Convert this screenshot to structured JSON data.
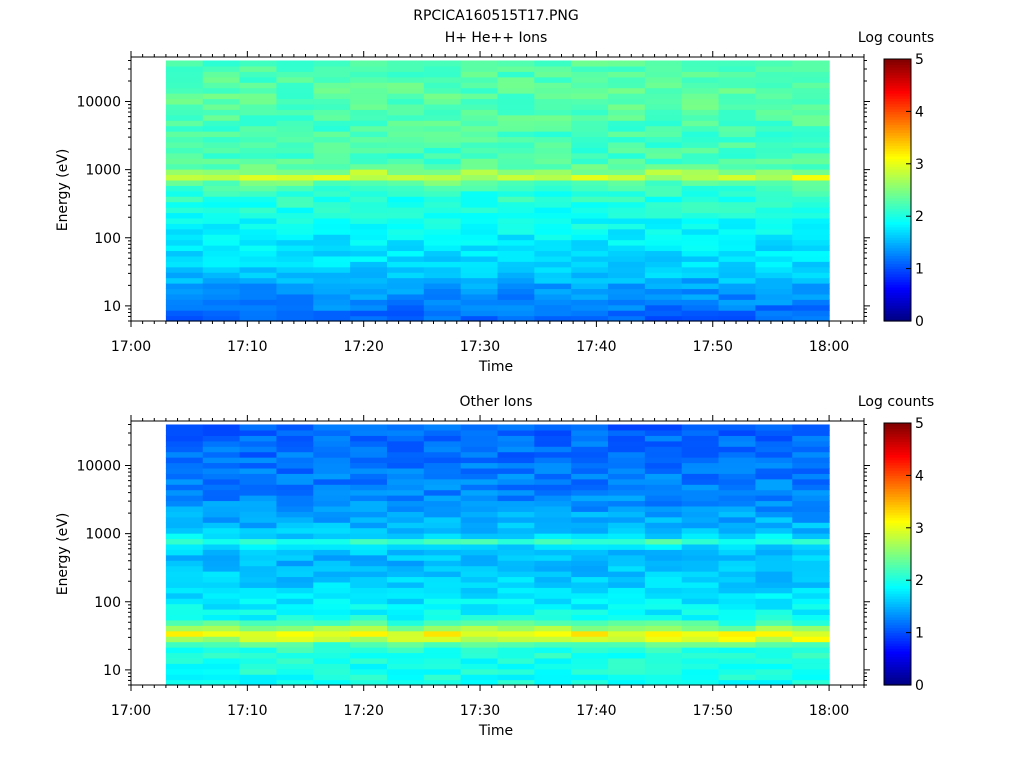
{
  "figure_title": "RPCICA160515T17.PNG",
  "panels": [
    {
      "title": "H+ He++ Ions",
      "ylabel": "Energy (eV)",
      "xlabel": "Time",
      "colorbar_label": "Log counts",
      "xticks": [
        "17:00",
        "17:10",
        "17:20",
        "17:30",
        "17:40",
        "17:50",
        "18:00"
      ],
      "yticks": [
        "10",
        "100",
        "1000",
        "10000"
      ],
      "cbar_ticks": [
        "0",
        "1",
        "2",
        "3",
        "4",
        "5"
      ]
    },
    {
      "title": "Other Ions",
      "ylabel": "Energy (eV)",
      "xlabel": "Time",
      "colorbar_label": "Log counts",
      "xticks": [
        "17:00",
        "17:10",
        "17:20",
        "17:30",
        "17:40",
        "17:50",
        "18:00"
      ],
      "yticks": [
        "10",
        "100",
        "1000",
        "10000"
      ],
      "cbar_ticks": [
        "0",
        "1",
        "2",
        "3",
        "4",
        "5"
      ]
    }
  ],
  "chart_data": [
    {
      "type": "heatmap",
      "title": "H+ He++ Ions",
      "xlabel": "Time",
      "ylabel": "Energy (eV)",
      "colorbar_label": "Log counts",
      "y_scale": "log",
      "x_range": [
        "17:00",
        "18:03"
      ],
      "y_range": [
        6,
        45000
      ],
      "data_x_range": [
        "17:03",
        "18:00"
      ],
      "data_y_range": [
        6,
        40000
      ],
      "color_range": [
        0,
        5
      ],
      "colormap": "jet",
      "time_bins": 18,
      "energy_profile": [
        {
          "energy": 6,
          "log_counts": 1.1
        },
        {
          "energy": 12,
          "log_counts": 1.3
        },
        {
          "energy": 20,
          "log_counts": 1.4
        },
        {
          "energy": 28,
          "log_counts": 1.6
        },
        {
          "energy": 45,
          "log_counts": 1.7
        },
        {
          "energy": 100,
          "log_counts": 1.8
        },
        {
          "energy": 250,
          "log_counts": 2.0
        },
        {
          "energy": 500,
          "log_counts": 2.1
        },
        {
          "energy": 700,
          "log_counts": 2.4
        },
        {
          "energy": 820,
          "log_counts": 3.0
        },
        {
          "energy": 1000,
          "log_counts": 2.4
        },
        {
          "energy": 1500,
          "log_counts": 2.2
        },
        {
          "energy": 3000,
          "log_counts": 2.2
        },
        {
          "energy": 10000,
          "log_counts": 2.3
        },
        {
          "energy": 40000,
          "log_counts": 2.25
        }
      ]
    },
    {
      "type": "heatmap",
      "title": "Other Ions",
      "xlabel": "Time",
      "ylabel": "Energy (eV)",
      "colorbar_label": "Log counts",
      "y_scale": "log",
      "x_range": [
        "17:00",
        "18:03"
      ],
      "y_range": [
        6,
        45000
      ],
      "data_x_range": [
        "17:03",
        "18:00"
      ],
      "data_y_range": [
        6,
        40000
      ],
      "color_range": [
        0,
        5
      ],
      "colormap": "jet",
      "time_bins": 18,
      "energy_profile": [
        {
          "energy": 6,
          "log_counts": 1.95
        },
        {
          "energy": 15,
          "log_counts": 2.0
        },
        {
          "energy": 22,
          "log_counts": 2.1
        },
        {
          "energy": 27,
          "log_counts": 2.6
        },
        {
          "energy": 30,
          "log_counts": 3.1
        },
        {
          "energy": 35,
          "log_counts": 3.1
        },
        {
          "energy": 42,
          "log_counts": 2.5
        },
        {
          "energy": 60,
          "log_counts": 1.9
        },
        {
          "energy": 150,
          "log_counts": 1.7
        },
        {
          "energy": 400,
          "log_counts": 1.5
        },
        {
          "energy": 650,
          "log_counts": 1.7
        },
        {
          "energy": 780,
          "log_counts": 2.2
        },
        {
          "energy": 950,
          "log_counts": 1.6
        },
        {
          "energy": 3000,
          "log_counts": 1.3
        },
        {
          "energy": 10000,
          "log_counts": 1.2
        },
        {
          "energy": 40000,
          "log_counts": 1.1
        }
      ]
    }
  ]
}
